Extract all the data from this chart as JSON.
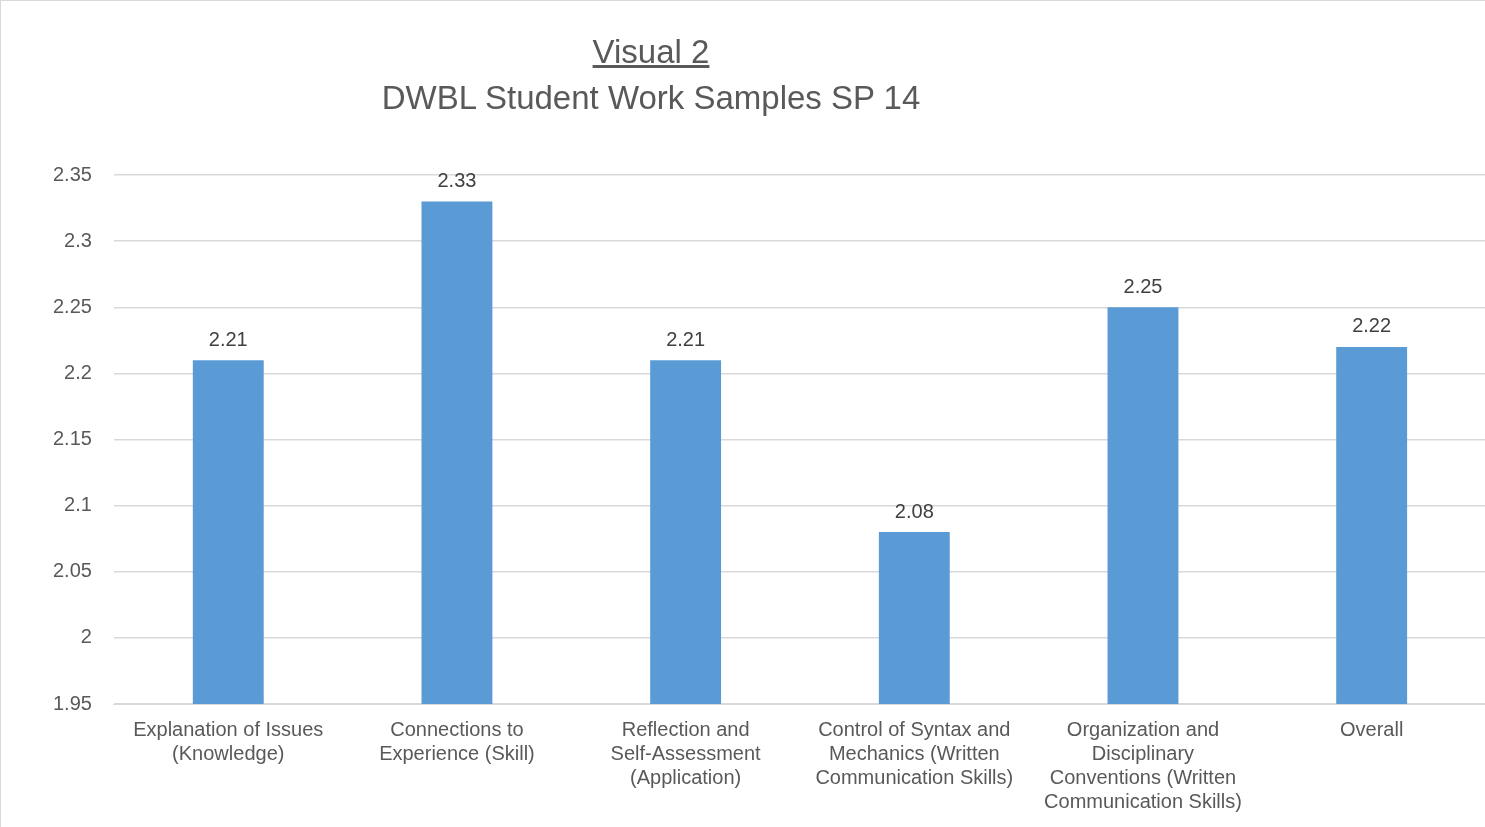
{
  "chart_data": {
    "type": "bar",
    "title": "Visual 2",
    "subtitle": "DWBL Student Work Samples SP 14",
    "categories": [
      "Explanation of Issues (Knowledge)",
      "Connections to Experience (Skill)",
      "Reflection and Self-Assessment (Application)",
      "Control of Syntax and Mechanics (Written Communication Skills)",
      "Organization and Disciplinary Conventions (Written Communication Skills)",
      "Overall"
    ],
    "values": [
      2.21,
      2.33,
      2.21,
      2.08,
      2.25,
      2.22
    ],
    "color": "#5b9bd5",
    "ylim": [
      1.95,
      2.35
    ],
    "yticks": [
      1.95,
      2,
      2.05,
      2.1,
      2.15,
      2.2,
      2.25,
      2.3,
      2.35
    ],
    "grid": "y",
    "legend": false,
    "data_labels": true
  }
}
